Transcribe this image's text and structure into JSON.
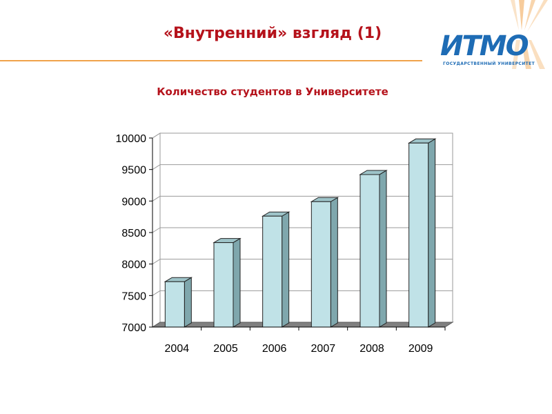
{
  "slide": {
    "title": "«Внутренний» взгляд (1)",
    "accent_color": "#b5121b",
    "rule_color": "#f0a24a"
  },
  "logo": {
    "wordmark": "ИТМО",
    "subtitle": "ГОСУДАРСТВЕННЫЙ УНИВЕРСИТЕТ",
    "brand_color": "#1e6cb5",
    "ray_color": "#f0a24a"
  },
  "chart_data": {
    "type": "bar",
    "title": "Количество студентов в Университете",
    "categories": [
      "2004",
      "2005",
      "2006",
      "2007",
      "2008",
      "2009"
    ],
    "values": [
      7720,
      8340,
      8760,
      8990,
      9420,
      9920
    ],
    "ylim": [
      7000,
      10000
    ],
    "yticks": [
      7000,
      7500,
      8000,
      8500,
      9000,
      9500,
      10000
    ],
    "grid": true,
    "legend": "none",
    "bar_color": "#c0e2e7",
    "three_d": true
  }
}
